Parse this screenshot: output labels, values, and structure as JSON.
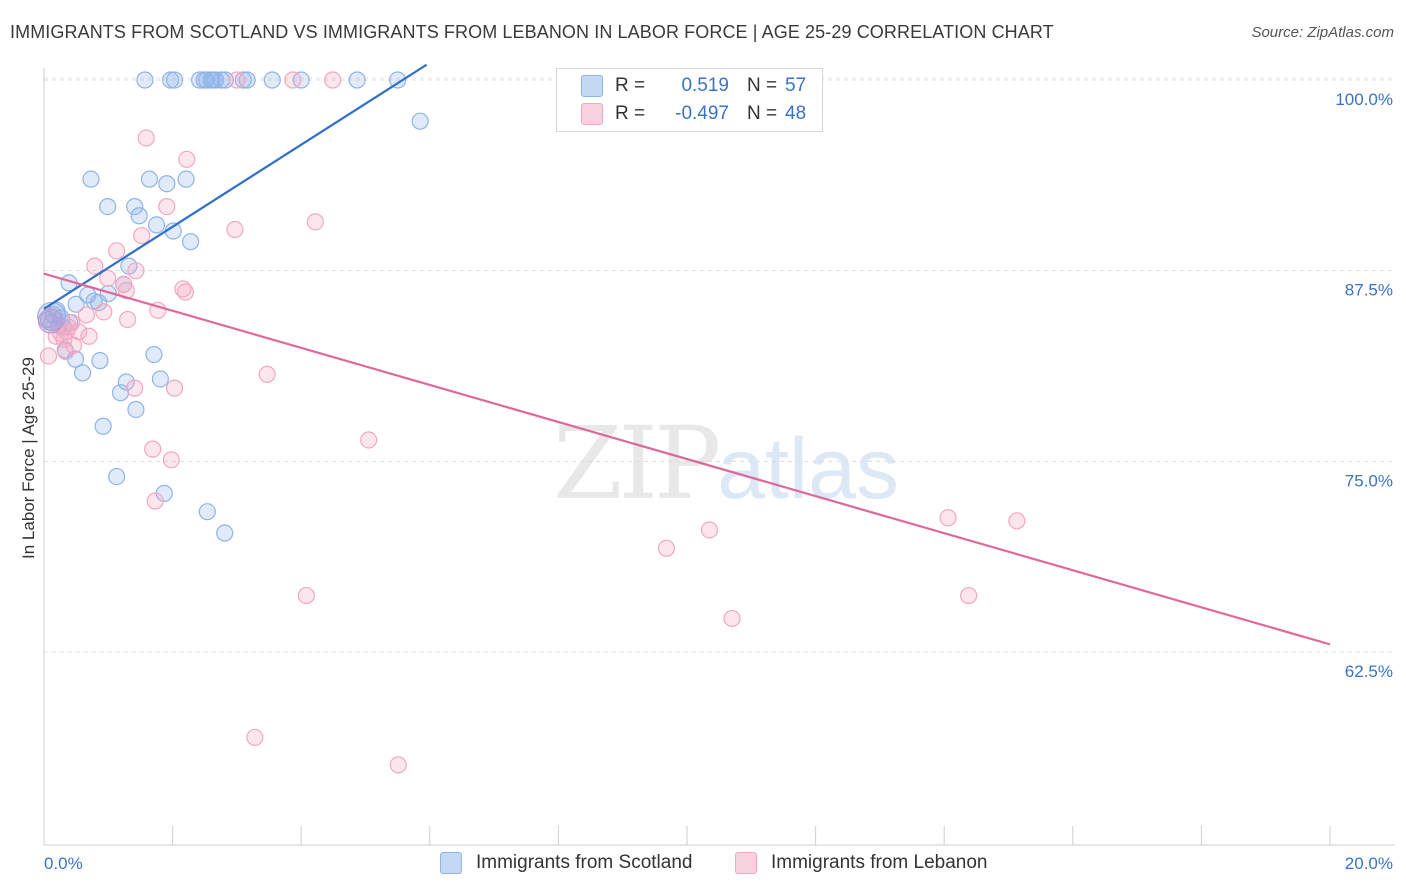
{
  "header": {
    "title": "IMMIGRANTS FROM SCOTLAND VS IMMIGRANTS FROM LEBANON IN LABOR FORCE | AGE 25-29 CORRELATION CHART",
    "source": "Source: ZipAtlas.com"
  },
  "watermark": {
    "zip": "ZIP",
    "atlas": "atlas"
  },
  "legend": {
    "rows": [
      {
        "r_label": "R =",
        "r_value": "0.519",
        "n_label": "N =",
        "n_value": "57",
        "color": "#8fb4e8"
      },
      {
        "r_label": "R =",
        "r_value": "-0.497",
        "n_label": "N =",
        "n_value": "48",
        "color": "#f3a7c0"
      }
    ]
  },
  "chart_data": {
    "type": "scatter",
    "title": "IMMIGRANTS FROM SCOTLAND VS IMMIGRANTS FROM LEBANON IN LABOR FORCE | AGE 25-29 CORRELATION CHART",
    "xlabel": "",
    "ylabel": "In Labor Force | Age 25-29",
    "xlim": [
      0,
      20
    ],
    "ylim": [
      50,
      101
    ],
    "x_tick_labels": [
      "0.0%",
      "20.0%"
    ],
    "y_ticks": [
      62.5,
      75.0,
      87.5,
      100.0
    ],
    "y_tick_labels": [
      "62.5%",
      "75.0%",
      "87.5%",
      "100.0%"
    ],
    "grid": true,
    "series": [
      {
        "name": "Immigrants from Scotland",
        "color": "#8fb4e8",
        "line_color": "#2f6fc9",
        "trend": {
          "x": [
            0.0,
            5.95
          ],
          "y": [
            85.0,
            101.0
          ]
        },
        "points": [
          [
            1.57,
            100
          ],
          [
            1.97,
            100
          ],
          [
            2.03,
            100
          ],
          [
            2.42,
            100
          ],
          [
            2.49,
            100
          ],
          [
            2.53,
            100
          ],
          [
            2.6,
            100
          ],
          [
            2.63,
            100
          ],
          [
            2.67,
            100
          ],
          [
            2.76,
            100
          ],
          [
            2.82,
            100
          ],
          [
            3.1,
            100
          ],
          [
            3.16,
            100
          ],
          [
            3.55,
            100
          ],
          [
            4.0,
            100
          ],
          [
            4.87,
            100
          ],
          [
            5.5,
            100
          ],
          [
            5.85,
            97.3
          ],
          [
            0.73,
            93.5
          ],
          [
            1.64,
            93.5
          ],
          [
            1.91,
            93.2
          ],
          [
            2.21,
            93.5
          ],
          [
            0.99,
            91.7
          ],
          [
            1.41,
            91.7
          ],
          [
            1.48,
            91.1
          ],
          [
            1.75,
            90.5
          ],
          [
            2.01,
            90.1
          ],
          [
            2.28,
            89.4
          ],
          [
            1.32,
            87.8
          ],
          [
            1.24,
            86.6
          ],
          [
            0.39,
            86.7
          ],
          [
            0.68,
            85.9
          ],
          [
            0.78,
            85.5
          ],
          [
            0.5,
            85.3
          ],
          [
            1.0,
            86.0
          ],
          [
            0.2,
            84.9
          ],
          [
            0.15,
            84.6
          ],
          [
            0.07,
            84.3
          ],
          [
            0.12,
            84.1
          ],
          [
            0.23,
            83.9
          ],
          [
            0.3,
            83.8
          ],
          [
            0.27,
            84.4
          ],
          [
            0.4,
            84.1
          ],
          [
            0.85,
            85.4
          ],
          [
            0.33,
            82.3
          ],
          [
            0.49,
            81.7
          ],
          [
            0.6,
            80.8
          ],
          [
            0.87,
            81.6
          ],
          [
            1.71,
            82.0
          ],
          [
            1.28,
            80.2
          ],
          [
            1.19,
            79.5
          ],
          [
            1.81,
            80.4
          ],
          [
            1.43,
            78.4
          ],
          [
            0.92,
            77.3
          ],
          [
            1.13,
            74.0
          ],
          [
            1.87,
            72.9
          ],
          [
            2.54,
            71.7
          ],
          [
            2.81,
            70.3
          ]
        ]
      },
      {
        "name": "Immigrants from Lebanon",
        "color": "#f3a7c0",
        "line_color": "#e0679a",
        "trend": {
          "x": [
            0.0,
            20.0
          ],
          "y": [
            87.3,
            63.0
          ]
        },
        "points": [
          [
            3.0,
            100
          ],
          [
            3.87,
            100
          ],
          [
            4.49,
            100
          ],
          [
            1.59,
            96.2
          ],
          [
            2.22,
            94.8
          ],
          [
            1.91,
            91.7
          ],
          [
            4.22,
            90.7
          ],
          [
            2.97,
            90.2
          ],
          [
            1.52,
            89.8
          ],
          [
            1.13,
            88.8
          ],
          [
            0.79,
            87.8
          ],
          [
            1.43,
            87.5
          ],
          [
            0.99,
            87.0
          ],
          [
            1.24,
            86.6
          ],
          [
            1.28,
            86.2
          ],
          [
            2.16,
            86.3
          ],
          [
            2.2,
            86.1
          ],
          [
            1.77,
            84.9
          ],
          [
            0.93,
            84.8
          ],
          [
            0.66,
            84.6
          ],
          [
            1.3,
            84.3
          ],
          [
            0.43,
            84.1
          ],
          [
            0.38,
            83.8
          ],
          [
            0.54,
            83.5
          ],
          [
            0.7,
            83.2
          ],
          [
            0.35,
            83.5
          ],
          [
            0.26,
            83.4
          ],
          [
            0.19,
            83.2
          ],
          [
            0.31,
            83.0
          ],
          [
            0.46,
            82.6
          ],
          [
            0.34,
            82.2
          ],
          [
            0.07,
            81.9
          ],
          [
            3.47,
            80.7
          ],
          [
            1.41,
            79.8
          ],
          [
            2.03,
            79.8
          ],
          [
            5.05,
            76.4
          ],
          [
            1.69,
            75.8
          ],
          [
            1.98,
            75.1
          ],
          [
            1.73,
            72.4
          ],
          [
            14.06,
            71.3
          ],
          [
            15.13,
            71.1
          ],
          [
            10.35,
            70.5
          ],
          [
            9.68,
            69.3
          ],
          [
            4.08,
            66.2
          ],
          [
            14.38,
            66.2
          ],
          [
            10.7,
            64.7
          ],
          [
            3.28,
            56.9
          ],
          [
            5.51,
            55.1
          ]
        ]
      }
    ]
  },
  "bottom_legend": {
    "items": [
      {
        "label": "Immigrants from Scotland",
        "color": "#8fb4e8"
      },
      {
        "label": "Immigrants from Lebanon",
        "color": "#f3a7c0"
      }
    ]
  }
}
